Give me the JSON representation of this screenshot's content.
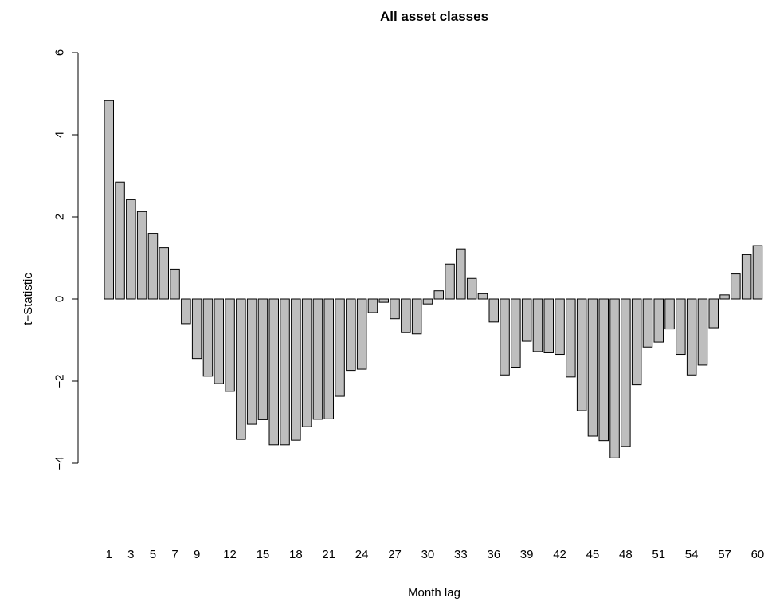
{
  "chart_data": {
    "type": "bar",
    "title": "All asset classes",
    "xlabel": "Month lag",
    "ylabel": "t−Statistic",
    "ylim": [
      -4,
      6
    ],
    "y_ticks": [
      "−4",
      "−2",
      "0",
      "2",
      "4",
      "6"
    ],
    "y_tick_values": [
      -4,
      -2,
      0,
      2,
      4,
      6
    ],
    "x_tick_labels": [
      "1",
      "3",
      "5",
      "7",
      "9",
      "12",
      "15",
      "18",
      "21",
      "24",
      "27",
      "30",
      "33",
      "36",
      "39",
      "42",
      "45",
      "48",
      "51",
      "54",
      "57",
      "60"
    ],
    "x_tick_categories": [
      1,
      3,
      5,
      7,
      9,
      12,
      15,
      18,
      21,
      24,
      27,
      30,
      33,
      36,
      39,
      42,
      45,
      48,
      51,
      54,
      57,
      60
    ],
    "categories": [
      1,
      2,
      3,
      4,
      5,
      6,
      7,
      8,
      9,
      10,
      11,
      12,
      13,
      14,
      15,
      16,
      17,
      18,
      19,
      20,
      21,
      22,
      23,
      24,
      25,
      26,
      27,
      28,
      29,
      30,
      31,
      32,
      33,
      34,
      35,
      36,
      37,
      38,
      39,
      40,
      41,
      42,
      43,
      44,
      45,
      46,
      47,
      48,
      49,
      50,
      51,
      52,
      53,
      54,
      55,
      56,
      57,
      58,
      59,
      60
    ],
    "values": [
      4.83,
      2.85,
      2.42,
      2.13,
      1.6,
      1.25,
      0.73,
      -0.6,
      -1.45,
      -1.88,
      -2.06,
      -2.25,
      -3.42,
      -3.05,
      -2.94,
      -3.55,
      -3.55,
      -3.44,
      -3.11,
      -2.93,
      -2.92,
      -2.37,
      -1.74,
      -1.71,
      -0.33,
      -0.08,
      -0.48,
      -0.82,
      -0.85,
      -0.12,
      0.2,
      0.85,
      1.22,
      0.5,
      0.13,
      -0.56,
      -1.85,
      -1.66,
      -1.03,
      -1.28,
      -1.31,
      -1.35,
      -1.9,
      -2.72,
      -3.34,
      -3.45,
      -3.87,
      -3.59,
      -2.09,
      -1.17,
      -1.05,
      -0.73,
      -1.35,
      -1.85,
      -1.61,
      -0.7,
      0.1,
      0.61,
      1.08,
      1.3
    ],
    "bar_color": "#bebebe",
    "border_color": "#000000"
  }
}
